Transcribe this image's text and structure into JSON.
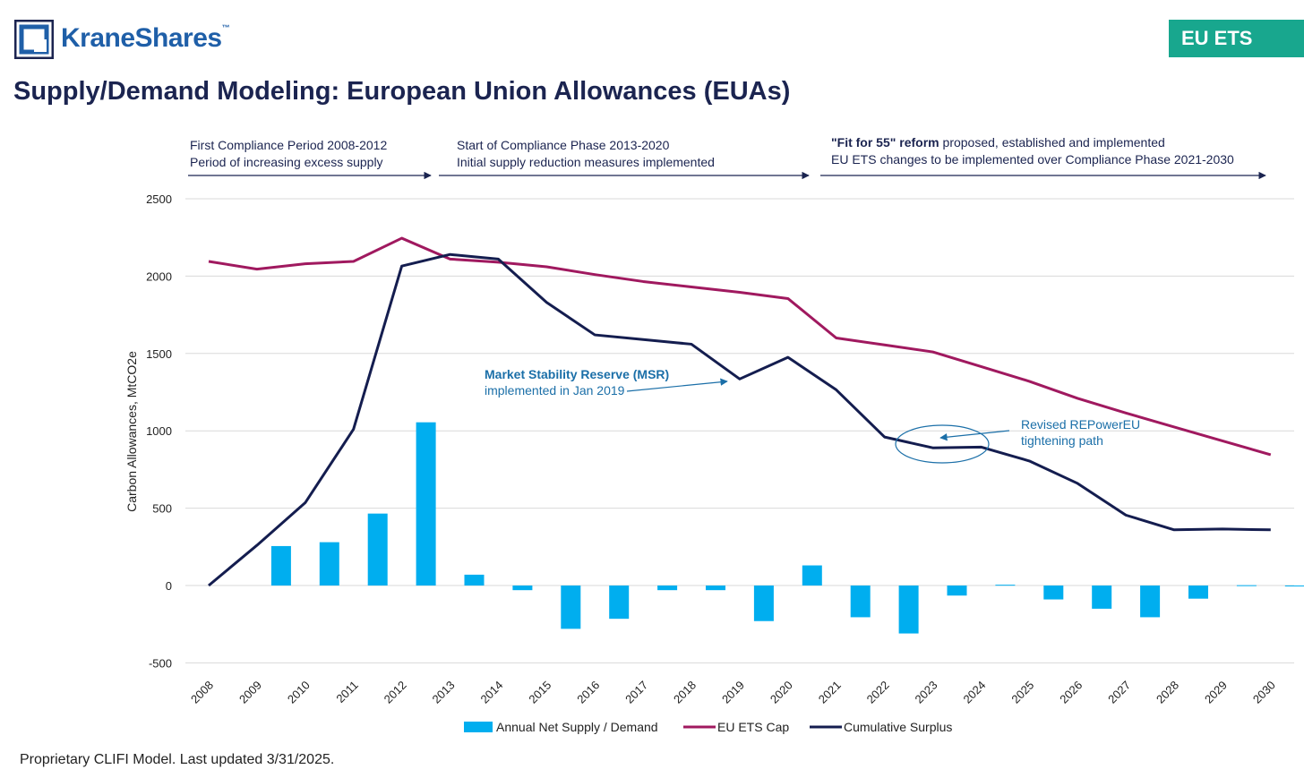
{
  "brand": {
    "name": "KraneShares",
    "tm": "™"
  },
  "badge": "EU ETS",
  "title": "Supply/Demand Modeling: European Union Allowances (EUAs)",
  "footnote": "Proprietary CLIFI Model. Last updated 3/31/2025.",
  "colors": {
    "bars": "#00aeef",
    "cap": "#a0195f",
    "surplus": "#141d4f",
    "annotation": "#1b6fa8",
    "badge": "#18a78e",
    "brand": "#1f5fa8"
  },
  "phases": [
    {
      "line1_bold": "",
      "line1": "First Compliance Period 2008-2012",
      "line2": "Period of increasing excess supply"
    },
    {
      "line1_bold": "",
      "line1": "Start of Compliance Phase 2013-2020",
      "line2": "Initial supply reduction measures implemented"
    },
    {
      "line1_bold": "\"Fit for 55\" reform",
      "line1": " proposed, established and implemented",
      "line2": "EU ETS changes to be implemented over Compliance Phase 2021-2030"
    }
  ],
  "annotations": {
    "msr_title": "Market Stability Reserve (MSR)",
    "msr_sub": "implemented in Jan 2019",
    "repower_line1": "Revised REPowerEU",
    "repower_line2": "tightening path"
  },
  "chart_data": {
    "type": "bar",
    "categories": [
      "2008",
      "2009",
      "2010",
      "2011",
      "2012",
      "2013",
      "2014",
      "2015",
      "2016",
      "2017",
      "2018",
      "2019",
      "2020",
      "2021",
      "2022",
      "2023",
      "2024",
      "2025",
      "2026",
      "2027",
      "2028",
      "2029",
      "2030"
    ],
    "ylabel": "Carbon Allowances, MtCO2e",
    "xlabel": "",
    "ylim": [
      -500,
      2500
    ],
    "yticks": [
      -500,
      0,
      500,
      1000,
      1500,
      2000,
      2500
    ],
    "grid": true,
    "legend_position": "bottom",
    "series": [
      {
        "name": "Annual Net Supply / Demand",
        "kind": "bar",
        "values": [
          0,
          255,
          280,
          465,
          1055,
          70,
          -30,
          -280,
          -215,
          -30,
          -30,
          -230,
          130,
          -205,
          -310,
          -65,
          5,
          -90,
          -150,
          -205,
          -85,
          2,
          -5
        ]
      },
      {
        "name": "EU ETS Cap",
        "kind": "line",
        "values": [
          2095,
          2045,
          2080,
          2095,
          2245,
          2110,
          2090,
          2060,
          2010,
          1965,
          1930,
          1895,
          1855,
          1600,
          1555,
          1510,
          1415,
          1320,
          1210,
          1115,
          1025,
          935,
          845
        ]
      },
      {
        "name": "Cumulative Surplus",
        "kind": "line",
        "values": [
          0,
          260,
          535,
          1010,
          2065,
          2140,
          2110,
          1830,
          1620,
          1590,
          1560,
          1335,
          1475,
          1265,
          960,
          890,
          895,
          805,
          660,
          455,
          360,
          365,
          360
        ]
      }
    ]
  }
}
